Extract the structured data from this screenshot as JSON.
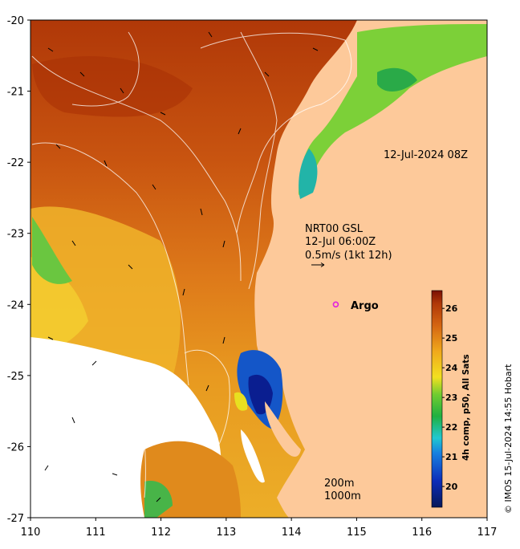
{
  "map": {
    "x_axis": {
      "ticks": [
        110,
        111,
        112,
        113,
        114,
        115,
        116,
        117
      ],
      "range": [
        110,
        117
      ]
    },
    "y_axis": {
      "ticks": [
        -20,
        -21,
        -22,
        -23,
        -24,
        -25,
        -26,
        -27
      ],
      "range": [
        -27,
        -20
      ]
    }
  },
  "annotations": {
    "timestamp": "12-Jul-2024 08Z",
    "current_title": "NRT00 GSL",
    "current_time": "12-Jul 06:00Z",
    "current_scale": "0.5m/s (1kt 12h)",
    "argo_label": "Argo",
    "contour_200": "200m",
    "contour_1000": "1000m"
  },
  "colorbar": {
    "title": "4h comp, p50, All Sats",
    "ticks": [
      20,
      21,
      22,
      23,
      24,
      25,
      26
    ],
    "range": [
      19.3,
      26.6
    ]
  },
  "credit": "© IMOS 15-Jul-2024 14:55 Hobart",
  "colors": {
    "land": "#fdc99a",
    "sst_warm": "#c04a0c",
    "sst_mid": "#e28a1c",
    "sst_cool": "#f2c82a",
    "sst_green": "#44b84a",
    "sst_blue": "#0a2aa0",
    "argo": "#e020e0"
  },
  "argo": {
    "lon": 114.68,
    "lat": -24.0
  }
}
